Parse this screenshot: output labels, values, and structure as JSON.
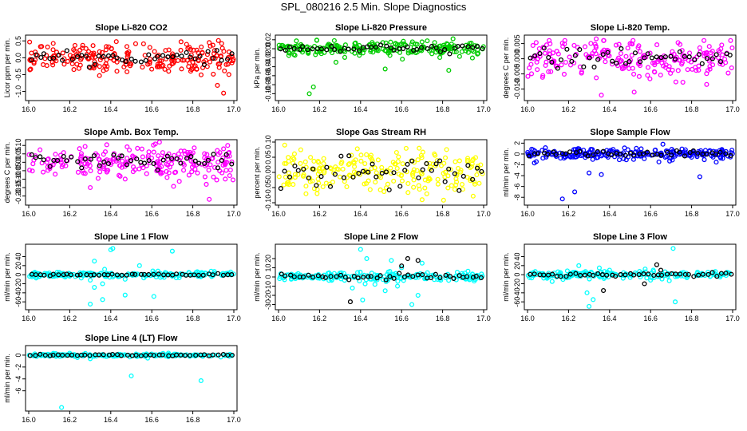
{
  "title": "SPL_080216  2.5 Min. Slope Diagnostics",
  "chart_data": [
    {
      "type": "scatter",
      "title": "Slope Li-820 CO2",
      "ylabel": "Licor ppm per min.",
      "color": "#ff0000",
      "xlim": [
        16.0,
        17.0
      ],
      "ylim": [
        -1.2,
        0.6
      ],
      "x_ticks": [
        "16.0",
        "16.2",
        "16.4",
        "16.6",
        "16.8",
        "17.0"
      ],
      "y_ticks": [
        "-1.0",
        "-0.5",
        "0.0",
        "0.5"
      ],
      "spread": 0.22,
      "black_spread": 0.08,
      "count": 220,
      "black_count": 45,
      "outliers": [
        [
          16.92,
          -0.82
        ],
        [
          16.95,
          -1.05
        ],
        [
          16.43,
          -0.4
        ],
        [
          16.22,
          -0.35
        ],
        [
          16.88,
          0.45
        ]
      ]
    },
    {
      "type": "scatter",
      "title": "Slope Li-820 Pressure",
      "ylabel": "kPa per min.",
      "color": "#00cc00",
      "xlim": [
        16.0,
        17.0
      ],
      "ylim": [
        -0.11,
        0.025
      ],
      "x_ticks": [
        "16.0",
        "16.2",
        "16.4",
        "16.6",
        "16.8",
        "17.0"
      ],
      "y_ticks": [
        "-0.10",
        "-0.08",
        "-0.06",
        "-0.04",
        "-0.02",
        "0.00",
        "0.02"
      ],
      "spread": 0.008,
      "black_spread": 0.004,
      "count": 220,
      "black_count": 45,
      "outliers": [
        [
          16.15,
          -0.1
        ],
        [
          16.17,
          -0.085
        ],
        [
          16.52,
          -0.045
        ],
        [
          16.83,
          -0.048
        ],
        [
          16.28,
          -0.03
        ],
        [
          16.05,
          -0.015
        ]
      ]
    },
    {
      "type": "scatter",
      "title": "Slope Li-820 Temp.",
      "ylabel": "degrees C per min.",
      "color": "#ff00ff",
      "xlim": [
        16.0,
        17.0
      ],
      "ylim": [
        -0.013,
        0.007
      ],
      "x_ticks": [
        "16.0",
        "16.2",
        "16.4",
        "16.6",
        "16.8",
        "17.0"
      ],
      "y_ticks": [
        "-0.010",
        "-0.005",
        "0.000",
        "0.005"
      ],
      "spread": 0.0032,
      "black_spread": 0.0015,
      "count": 220,
      "black_count": 45,
      "outliers": [
        [
          16.36,
          -0.012
        ],
        [
          16.52,
          -0.011
        ],
        [
          16.99,
          0.006
        ],
        [
          16.5,
          0.005
        ]
      ]
    },
    {
      "type": "scatter",
      "title": "Slope Amb. Box Temp.",
      "ylabel": "degrees C per min.",
      "color": "#ff00ff",
      "xlim": [
        16.0,
        17.0
      ],
      "ylim": [
        -0.24,
        0.12
      ],
      "x_ticks": [
        "16.0",
        "16.2",
        "16.4",
        "16.6",
        "16.8",
        "17.0"
      ],
      "y_ticks": [
        "-0.20",
        "-0.15",
        "-0.10",
        "-0.05",
        "0.00",
        "0.05",
        "0.10"
      ],
      "spread": 0.05,
      "black_spread": 0.025,
      "count": 220,
      "black_count": 45,
      "outliers": [
        [
          16.88,
          -0.22
        ],
        [
          16.97,
          0.1
        ],
        [
          16.95,
          0.08
        ],
        [
          16.3,
          -0.15
        ]
      ]
    },
    {
      "type": "scatter",
      "title": "Slope Gas Stream RH",
      "ylabel": "percent per min.",
      "color": "#ffff00",
      "xlim": [
        16.0,
        17.0
      ],
      "ylim": [
        -0.1,
        0.1
      ],
      "x_ticks": [
        "16.0",
        "16.2",
        "16.4",
        "16.6",
        "16.8",
        "17.0"
      ],
      "y_ticks": [
        "-0.10",
        "-0.05",
        "0.00",
        "0.05",
        "0.10"
      ],
      "spread": 0.035,
      "black_spread": 0.025,
      "count": 220,
      "black_count": 45,
      "outliers": [
        [
          16.03,
          0.09
        ],
        [
          16.7,
          -0.09
        ]
      ]
    },
    {
      "type": "scatter",
      "title": "Slope Sample Flow",
      "ylabel": "ml/min per min.",
      "color": "#0000ff",
      "xlim": [
        16.0,
        17.0
      ],
      "ylim": [
        -9,
        2.2
      ],
      "x_ticks": [
        "16.0",
        "16.2",
        "16.4",
        "16.6",
        "16.8",
        "17.0"
      ],
      "y_ticks": [
        "-8",
        "-6",
        "-4",
        "-2",
        "0",
        "2"
      ],
      "spread": 0.5,
      "black_spread": 0.3,
      "count": 220,
      "black_count": 45,
      "outliers": [
        [
          16.17,
          -8.3
        ],
        [
          16.23,
          -7
        ],
        [
          16.3,
          -3.5
        ],
        [
          16.36,
          -3.8
        ],
        [
          16.84,
          -4.2
        ],
        [
          16.66,
          1.8
        ],
        [
          16.92,
          -1.5
        ]
      ]
    },
    {
      "type": "scatter",
      "title": "Slope Line 1 Flow",
      "ylabel": "ml/min per min.",
      "color": "#00ffff",
      "xlim": [
        16.0,
        17.0
      ],
      "ylim": [
        -72,
        62
      ],
      "x_ticks": [
        "16.0",
        "16.2",
        "16.4",
        "16.6",
        "16.8",
        "17.0"
      ],
      "y_ticks": [
        "-60",
        "-40",
        "-20",
        "0",
        "20",
        "40"
      ],
      "spread": 3,
      "black_spread": 1,
      "count": 200,
      "black_count": 45,
      "outliers": [
        [
          16.3,
          -65
        ],
        [
          16.4,
          55
        ],
        [
          16.41,
          58
        ],
        [
          16.32,
          30
        ],
        [
          16.36,
          -20
        ],
        [
          16.47,
          -45
        ],
        [
          16.54,
          20
        ],
        [
          16.7,
          52
        ],
        [
          16.61,
          -48
        ],
        [
          16.36,
          -55
        ],
        [
          16.3,
          -12
        ],
        [
          16.47,
          -10
        ],
        [
          16.37,
          12
        ],
        [
          16.41,
          -5
        ],
        [
          16.32,
          -28
        ],
        [
          16.63,
          8
        ],
        [
          16.66,
          -6
        ]
      ]
    },
    {
      "type": "scatter",
      "title": "Slope Line 2 Flow",
      "ylabel": "ml/min per min.",
      "color": "#00ffff",
      "xlim": [
        16.0,
        17.0
      ],
      "ylim": [
        -33,
        33
      ],
      "x_ticks": [
        "16.0",
        "16.2",
        "16.4",
        "16.6",
        "16.8",
        "17.0"
      ],
      "y_ticks": [
        "-30",
        "-20",
        "-10",
        "0",
        "10",
        "20"
      ],
      "spread": 2.5,
      "black_spread": 1.5,
      "count": 200,
      "black_count": 45,
      "outliers": [
        [
          16.4,
          30
        ],
        [
          16.43,
          20
        ],
        [
          16.55,
          18
        ],
        [
          16.65,
          -30
        ],
        [
          16.52,
          -15
        ],
        [
          16.41,
          -25
        ],
        [
          16.36,
          -12
        ],
        [
          16.68,
          -20
        ],
        [
          16.6,
          10
        ],
        [
          16.7,
          15
        ],
        [
          16.47,
          -8
        ],
        [
          16.58,
          -10
        ]
      ],
      "black_outliers": [
        [
          16.35,
          -27
        ],
        [
          16.63,
          20
        ],
        [
          16.68,
          18
        ],
        [
          16.6,
          12
        ]
      ]
    },
    {
      "type": "scatter",
      "title": "Slope Line 3 Flow",
      "ylabel": "ml/min per min.",
      "color": "#00ffff",
      "xlim": [
        16.0,
        17.0
      ],
      "ylim": [
        -72,
        62
      ],
      "x_ticks": [
        "16.0",
        "16.2",
        "16.4",
        "16.6",
        "16.8",
        "17.0"
      ],
      "y_ticks": [
        "-60",
        "-40",
        "-20",
        "0",
        "20",
        "40"
      ],
      "spread": 4,
      "black_spread": 2,
      "count": 200,
      "black_count": 45,
      "outliers": [
        [
          16.3,
          -70
        ],
        [
          16.32,
          -55
        ],
        [
          16.29,
          -40
        ],
        [
          16.72,
          -60
        ],
        [
          16.71,
          58
        ],
        [
          16.55,
          -5
        ],
        [
          16.25,
          20
        ],
        [
          16.35,
          15
        ],
        [
          16.6,
          -12
        ],
        [
          16.12,
          -15
        ],
        [
          16.4,
          10
        ]
      ],
      "black_outliers": [
        [
          16.37,
          -35
        ],
        [
          16.63,
          22
        ],
        [
          16.57,
          -20
        ],
        [
          16.65,
          10
        ]
      ]
    },
    {
      "type": "scatter",
      "title": "Slope Line 4 (LT) Flow",
      "ylabel": "ml/min per min.",
      "color": "#00ffff",
      "xlim": [
        16.0,
        17.0
      ],
      "ylim": [
        -9,
        1.2
      ],
      "x_ticks": [
        "16.0",
        "16.2",
        "16.4",
        "16.6",
        "16.8",
        "17.0"
      ],
      "y_ticks": [
        "-6",
        "-4",
        "-2",
        "0"
      ],
      "spread": 0.12,
      "black_spread": 0.08,
      "count": 200,
      "black_count": 45,
      "outliers": [
        [
          16.16,
          -8.8
        ],
        [
          16.5,
          -3.5
        ],
        [
          16.84,
          -4.3
        ],
        [
          16.3,
          -0.6
        ],
        [
          16.58,
          -0.5
        ],
        [
          16.12,
          0.3
        ]
      ]
    }
  ]
}
